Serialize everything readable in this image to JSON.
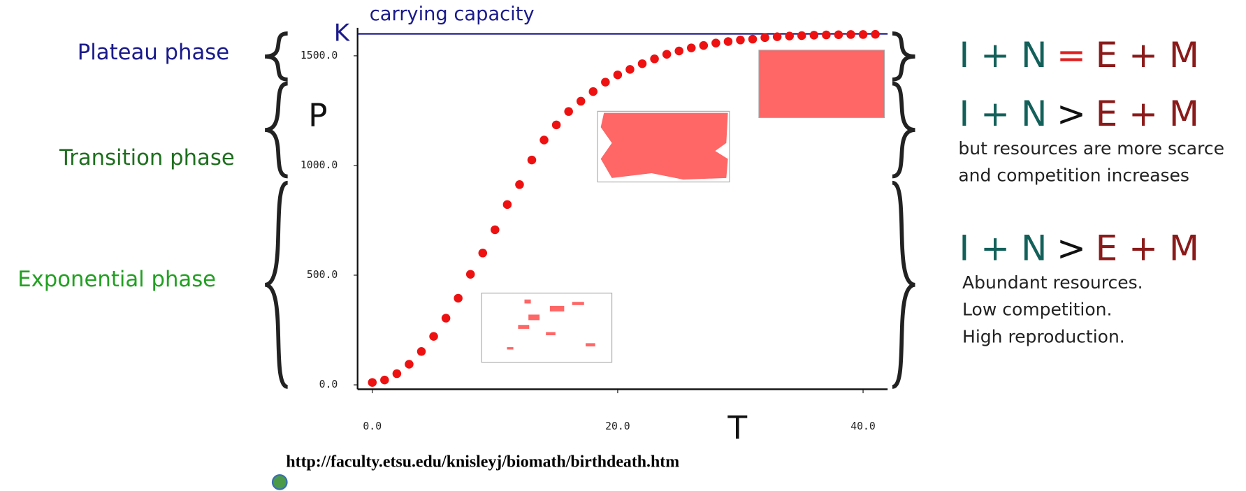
{
  "chart_data": {
    "type": "scatter",
    "title": "carrying capacity",
    "k_value": 1600,
    "k_label": "K",
    "k_color": "#1a1a8c",
    "y_label": "P",
    "x_label": "T",
    "color": "#ee1111",
    "x": [
      0,
      1,
      2,
      3,
      4,
      5,
      6,
      7,
      8,
      9,
      10,
      11,
      12,
      13,
      14,
      15,
      16,
      17,
      18,
      19,
      20,
      21,
      22,
      23,
      24,
      25,
      26,
      27,
      28,
      29,
      30,
      31,
      32,
      33,
      34,
      35,
      36,
      37,
      38,
      39,
      40,
      41
    ],
    "values": [
      11,
      22,
      51,
      94,
      152,
      221,
      304,
      395,
      504,
      601,
      707,
      822,
      913,
      1025,
      1116,
      1185,
      1246,
      1293,
      1337,
      1380,
      1413,
      1438,
      1464,
      1486,
      1507,
      1522,
      1536,
      1547,
      1558,
      1565,
      1572,
      1576,
      1583,
      1587,
      1590,
      1592,
      1594,
      1595,
      1596,
      1597,
      1597,
      1598
    ],
    "xlim": [
      -1.2,
      42
    ],
    "ylim": [
      -20,
      1620
    ],
    "xticks": [
      {
        "value": 0,
        "label": "0.0"
      },
      {
        "value": 20,
        "label": "20.0"
      },
      {
        "value": 40,
        "label": "40.0"
      }
    ],
    "yticks": [
      {
        "value": 0,
        "label": "0.0"
      },
      {
        "value": 500,
        "label": "500.0"
      },
      {
        "value": 1000,
        "label": "1000.0"
      },
      {
        "value": 1500,
        "label": "1500.0"
      }
    ],
    "phases": [
      {
        "name": "Plateau phase",
        "color": "#1a1a8c"
      },
      {
        "name": "Transition phase",
        "color": "#1e6e1e"
      },
      {
        "name": "Exponential phase",
        "color": "#22a022"
      }
    ],
    "equations": [
      {
        "left": "I + N",
        "op": "=",
        "op_color": "#e02020",
        "right": "E + M",
        "notes": []
      },
      {
        "left": "I + N",
        "op": ">",
        "op_color": "#111111",
        "right": "E + M",
        "notes": [
          "but resources are more scarce",
          "and competition increases"
        ]
      },
      {
        "left": "I + N",
        "op": ">",
        "op_color": "#111111",
        "right": "E + M",
        "notes": [
          "Abundant resources.",
          "Low competition.",
          "High reproduction."
        ]
      }
    ],
    "source": "http://faculty.etsu.edu/knisleyj/biomath/birthdeath.htm"
  }
}
